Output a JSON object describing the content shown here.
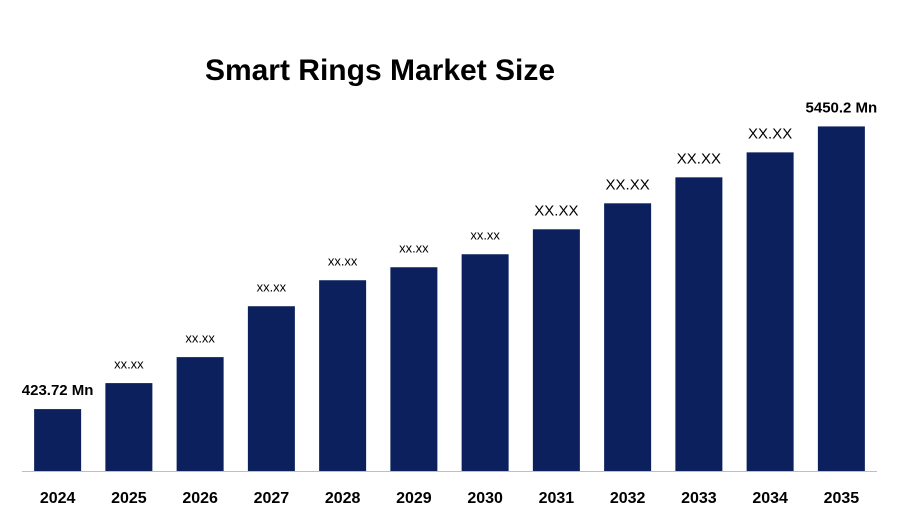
{
  "chart_data": {
    "type": "bar",
    "title": "Smart Rings Market Size",
    "categories": [
      "2024",
      "2025",
      "2026",
      "2027",
      "2028",
      "2029",
      "2030",
      "2031",
      "2032",
      "2033",
      "2034",
      "2035"
    ],
    "values": [
      423.72,
      886,
      1348,
      2253,
      2715,
      2946,
      3177,
      3621,
      4083,
      4545,
      4989,
      5450.2
    ],
    "value_labels": [
      "423.72 Mn",
      "xx.xx",
      "xx.xx",
      "xx.xx",
      "xx.xx",
      "xx.xx",
      "xx.xx",
      "XX.XX",
      "XX.XX",
      "XX.XX",
      "XX.XX",
      "5450.2 Mn"
    ],
    "color": "#0b205d",
    "ylim": [
      -677,
      5600
    ]
  }
}
